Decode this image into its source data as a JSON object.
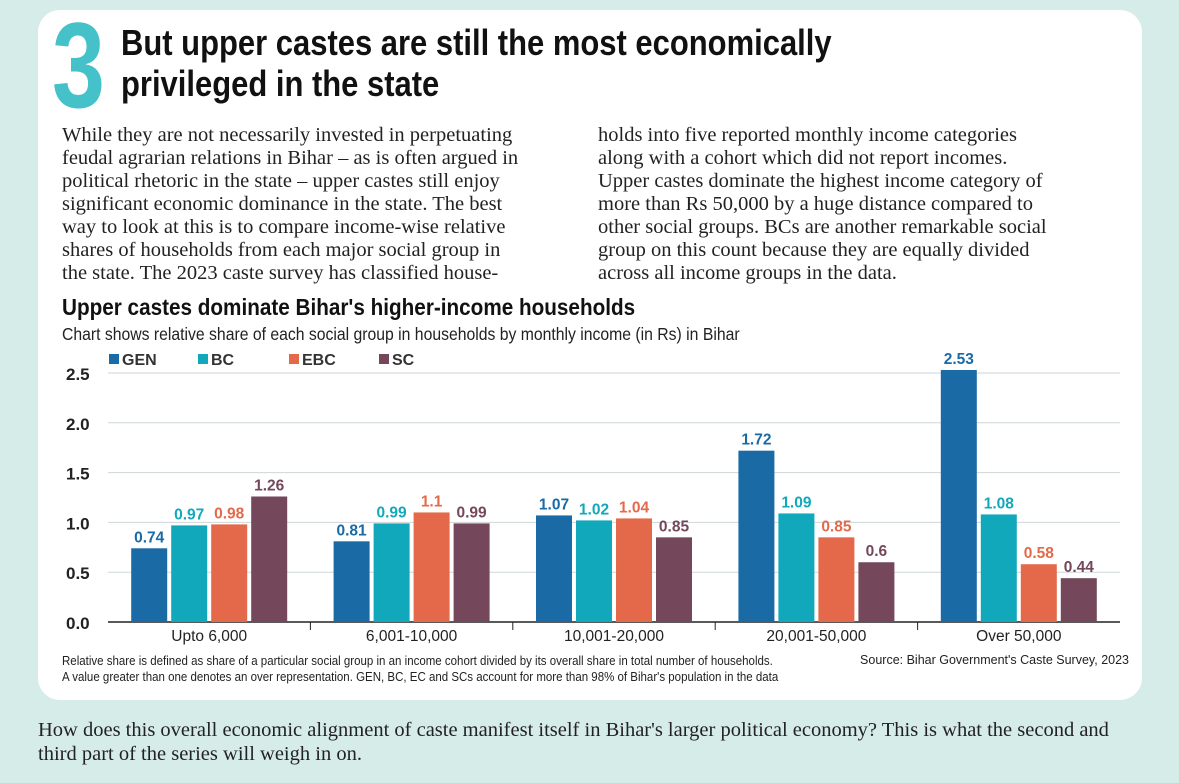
{
  "section_number": "3",
  "headline": "But upper castes are still the most economically privileged in the state",
  "headline_line1": "But upper castes are still the most economically",
  "headline_line2": "privileged in the state",
  "body_col1": "While they are not necessarily invested in perpetuating\nfeudal agrarian relations in Bihar – as is often argued in\npolitical rhetoric in the state – upper castes still enjoy\nsignificant economic dominance in the state. The best\nway to look at this is to compare income-wise relative\nshares of households from each major social group in\nthe state. The 2023 caste survey has classified house-",
  "body_col2": "holds into five reported monthly income categories\nalong with a cohort which did not report incomes.\nUpper castes dominate the highest income category of\nmore than Rs 50,000 by a huge distance compared to\nother social groups. BCs are another remarkable social\ngroup on this count because they are equally divided\nacross all income groups in the data.",
  "footnote": "Relative share is defined as share of a particular social group in an income cohort divided by its overall share in total number of households.\nA value greater than one denotes an over representation. GEN, BC, EC and SCs account for more than 98% of Bihar's population in the data",
  "source": "Source: Bihar Government's Caste Survey, 2023",
  "closing_text": "How does this overall economic alignment of caste manifest itself in Bihar's larger political economy? This is what the second and third part of the series will weigh in on.",
  "colors": {
    "accent_number": "#45c1c9",
    "background": "#d6ece9",
    "gen": "#1a6aa6",
    "bc": "#12a8bc",
    "ebc": "#e4694a",
    "sc": "#74475a"
  },
  "chart_data": {
    "type": "bar",
    "title": "Upper castes dominate Bihar's higher-income households",
    "subtitle": "Chart shows relative share of each social group in households by monthly income (in Rs) in Bihar",
    "xlabel": "",
    "ylabel": "",
    "categories": [
      "Upto 6,000",
      "6,001-10,000",
      "10,001-20,000",
      "20,001-50,000",
      "Over 50,000"
    ],
    "series": [
      {
        "name": "GEN",
        "values": [
          0.74,
          0.81,
          1.07,
          1.72,
          2.53
        ]
      },
      {
        "name": "BC",
        "values": [
          0.97,
          0.99,
          1.02,
          1.09,
          1.08
        ]
      },
      {
        "name": "EBC",
        "values": [
          0.98,
          1.1,
          1.04,
          0.85,
          0.58
        ]
      },
      {
        "name": "SC",
        "values": [
          1.26,
          0.99,
          0.85,
          0.6,
          0.44
        ]
      }
    ],
    "data_labels": [
      [
        "0.74",
        "0.81",
        "1.07",
        "1.72",
        "2.53"
      ],
      [
        "0.97",
        "0.99",
        "1.02",
        "1.09",
        "1.08"
      ],
      [
        "0.98",
        "1.1",
        "1.04",
        "0.85",
        "0.58"
      ],
      [
        "1.26",
        "0.99",
        "0.85",
        "0.6",
        "0.44"
      ]
    ],
    "yticks": [
      "0.0",
      "0.5",
      "1.0",
      "1.5",
      "2.0",
      "2.5"
    ],
    "ylim": [
      0,
      2.5
    ],
    "grid": true,
    "legend_position": "top-left"
  }
}
